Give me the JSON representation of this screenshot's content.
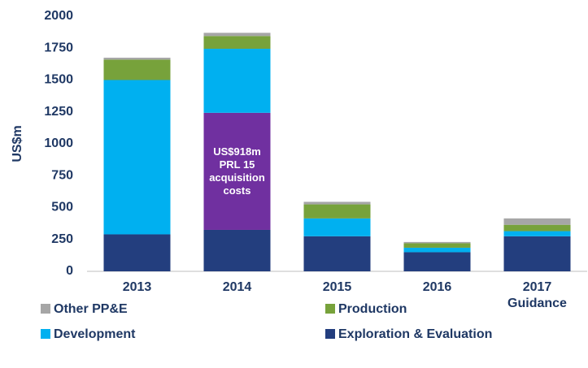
{
  "chart_data": {
    "type": "stacked_bar",
    "y_label": "US$m",
    "categories": [
      "2013",
      "2014",
      "2015",
      "2016",
      "2017 Guidance"
    ],
    "series": [
      {
        "name": "Exploration & Evaluation",
        "color": "#233e7e",
        "values": [
          290,
          325,
          275,
          150,
          275
        ]
      },
      {
        "color": "#7030a0",
        "values": [
          null,
          918,
          null,
          null,
          null
        ]
      },
      {
        "name": "Development",
        "color": "#00b0f0",
        "values": [
          1210,
          502,
          140,
          35,
          40
        ]
      },
      {
        "name": "Production",
        "color": "#77a23b",
        "values": [
          160,
          100,
          110,
          35,
          50
        ]
      },
      {
        "name": "Other PP&E",
        "color": "#a6a6a6",
        "values": [
          15,
          25,
          20,
          10,
          50
        ]
      }
    ],
    "annotations": [
      {
        "text": "US$918m PRL 15 acquisition costs",
        "series": 1,
        "index": 1
      }
    ],
    "ylim": [
      0,
      2000
    ],
    "yticks": [
      0,
      250,
      500,
      750,
      1000,
      1250,
      1500,
      1750,
      2000
    ],
    "grid": false
  }
}
